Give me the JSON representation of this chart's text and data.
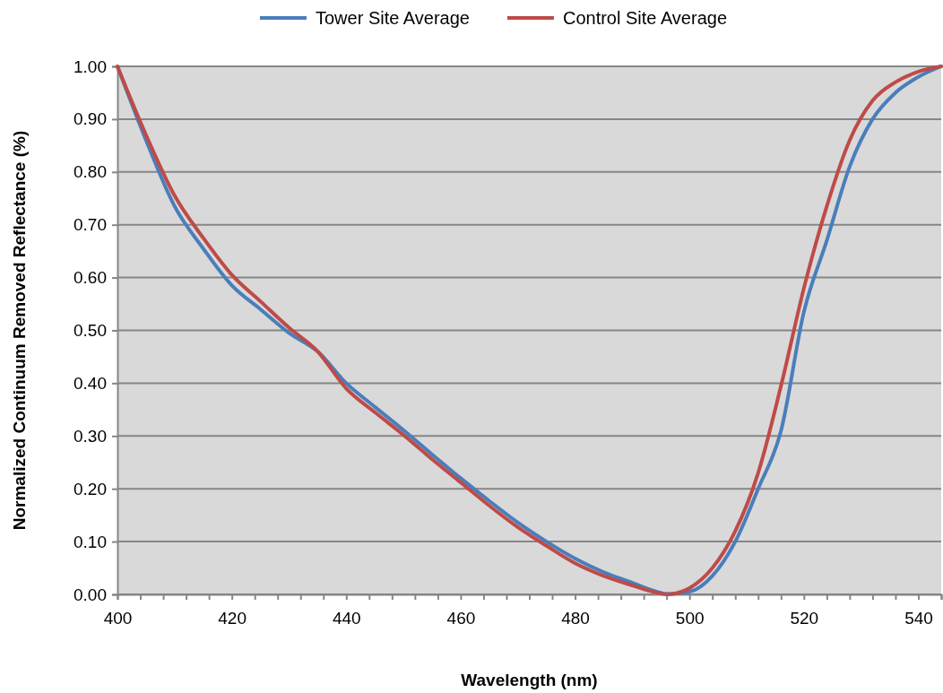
{
  "chart_data": {
    "type": "line",
    "xlabel": "Wavelength (nm)",
    "ylabel": "Normalized Continuum Removed Reflectance (%)",
    "x": [
      400,
      405,
      410,
      415,
      420,
      425,
      430,
      435,
      440,
      445,
      450,
      455,
      460,
      465,
      470,
      475,
      480,
      485,
      490,
      494,
      496,
      500,
      504,
      508,
      512,
      516,
      520,
      524,
      528,
      532,
      536,
      540,
      544
    ],
    "series": [
      {
        "name": "Tower Site Average",
        "color": "#4a7ebb",
        "values": [
          1.0,
          0.86,
          0.735,
          0.655,
          0.585,
          0.54,
          0.495,
          0.46,
          0.4,
          0.355,
          0.311,
          0.265,
          0.22,
          0.177,
          0.136,
          0.1,
          0.068,
          0.042,
          0.022,
          0.006,
          0.001,
          0.005,
          0.035,
          0.1,
          0.2,
          0.31,
          0.535,
          0.67,
          0.81,
          0.9,
          0.95,
          0.98,
          1.0
        ]
      },
      {
        "name": "Control Site Average",
        "color": "#be4b48",
        "values": [
          1.0,
          0.87,
          0.755,
          0.675,
          0.605,
          0.555,
          0.505,
          0.46,
          0.39,
          0.345,
          0.302,
          0.256,
          0.212,
          0.168,
          0.127,
          0.092,
          0.059,
          0.035,
          0.017,
          0.004,
          0.0,
          0.012,
          0.05,
          0.12,
          0.23,
          0.395,
          0.58,
          0.735,
          0.86,
          0.935,
          0.97,
          0.99,
          1.0
        ]
      }
    ],
    "xlim": [
      400,
      544
    ],
    "xticks": [
      400,
      {
        "value": 404,
        "label": null
      },
      {
        "value": 408,
        "label": null
      },
      {
        "value": 412,
        "label": null
      },
      {
        "value": 416,
        "label": null
      },
      420,
      {
        "value": 424,
        "label": null
      },
      {
        "value": 428,
        "label": null
      },
      {
        "value": 432,
        "label": null
      },
      {
        "value": 436,
        "label": null
      },
      440,
      {
        "value": 444,
        "label": null
      },
      {
        "value": 448,
        "label": null
      },
      {
        "value": 452,
        "label": null
      },
      {
        "value": 456,
        "label": null
      },
      460,
      {
        "value": 464,
        "label": null
      },
      {
        "value": 468,
        "label": null
      },
      {
        "value": 472,
        "label": null
      },
      {
        "value": 476,
        "label": null
      },
      480,
      {
        "value": 484,
        "label": null
      },
      {
        "value": 488,
        "label": null
      },
      {
        "value": 492,
        "label": null
      },
      {
        "value": 496,
        "label": null
      },
      500,
      {
        "value": 504,
        "label": null
      },
      {
        "value": 508,
        "label": null
      },
      {
        "value": 512,
        "label": null
      },
      {
        "value": 516,
        "label": null
      },
      520,
      {
        "value": 524,
        "label": null
      },
      {
        "value": 528,
        "label": null
      },
      {
        "value": 532,
        "label": null
      },
      {
        "value": 536,
        "label": null
      },
      540,
      {
        "value": 544,
        "label": null
      }
    ],
    "ylim": [
      0,
      1
    ],
    "yticks": [
      {
        "value": 0,
        "label": "0.00"
      },
      {
        "value": 0.1,
        "label": "0.10"
      },
      {
        "value": 0.2,
        "label": "0.20"
      },
      {
        "value": 0.3,
        "label": "0.30"
      },
      {
        "value": 0.4,
        "label": "0.40"
      },
      {
        "value": 0.5,
        "label": "0.50"
      },
      {
        "value": 0.6,
        "label": "0.60"
      },
      {
        "value": 0.7,
        "label": "0.70"
      },
      {
        "value": 0.8,
        "label": "0.80"
      },
      {
        "value": 0.9,
        "label": "0.90"
      },
      {
        "value": 1,
        "label": "1.00"
      }
    ],
    "grid": "y",
    "legend": "top",
    "marker": "none",
    "line_style": "solid"
  }
}
